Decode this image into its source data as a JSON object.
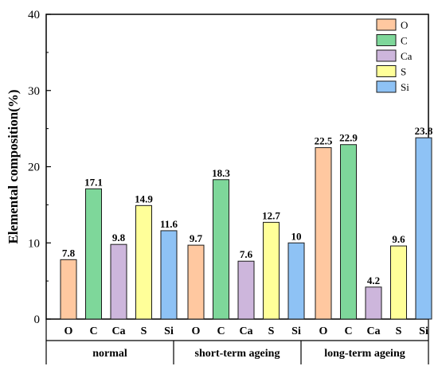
{
  "colors": {
    "O": "#ffc8a0",
    "C": "#7ed79a",
    "Ca": "#cdb6dc",
    "S": "#ffff99",
    "Si": "#8ec2f5",
    "stroke": "#1a1a1a"
  },
  "chart_data": {
    "type": "bar",
    "ylabel": "Elemental composition(%)",
    "ylim": [
      0,
      40
    ],
    "yticks": [
      0,
      10,
      20,
      30,
      40
    ],
    "grid": false,
    "legend_position": "top-right",
    "legend": [
      "O",
      "C",
      "Ca",
      "S",
      "Si"
    ],
    "groups": [
      {
        "name": "normal",
        "bars": [
          {
            "element": "O",
            "value": 7.8,
            "label": "7.8"
          },
          {
            "element": "C",
            "value": 17.1,
            "label": "17.1"
          },
          {
            "element": "Ca",
            "value": 9.8,
            "label": "9.8"
          },
          {
            "element": "S",
            "value": 14.9,
            "label": "14.9"
          },
          {
            "element": "Si",
            "value": 11.6,
            "label": "11.6"
          }
        ]
      },
      {
        "name": "short-term ageing",
        "bars": [
          {
            "element": "O",
            "value": 9.7,
            "label": "9.7"
          },
          {
            "element": "C",
            "value": 18.3,
            "label": "18.3"
          },
          {
            "element": "Ca",
            "value": 7.6,
            "label": "7.6"
          },
          {
            "element": "S",
            "value": 12.7,
            "label": "12.7"
          },
          {
            "element": "Si",
            "value": 10,
            "label": "10"
          }
        ]
      },
      {
        "name": "long-term ageing",
        "bars": [
          {
            "element": "O",
            "value": 22.5,
            "label": "22.5"
          },
          {
            "element": "C",
            "value": 22.9,
            "label": "22.9"
          },
          {
            "element": "Ca",
            "value": 4.2,
            "label": "4.2"
          },
          {
            "element": "S",
            "value": 9.6,
            "label": "9.6"
          },
          {
            "element": "Si",
            "value": 23.8,
            "label": "23.8"
          }
        ]
      }
    ]
  }
}
